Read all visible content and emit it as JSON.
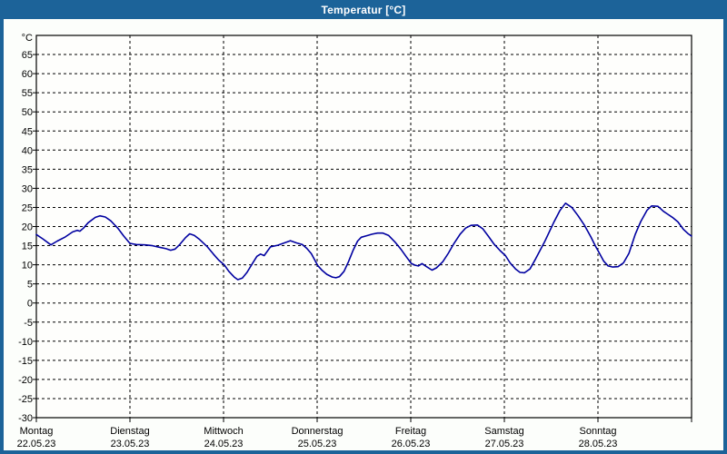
{
  "window": {
    "title": "Temperatur [°C]"
  },
  "colors": {
    "titlebar": "#1c6399",
    "border": "#1c6399",
    "curve": "#0000a0",
    "grid": "#000000",
    "frame": "#000000",
    "plot_background": "#fefefc",
    "page_background": "#fcfefb",
    "title_text": "#ffffff",
    "label_text": "#000000"
  },
  "chart_data": {
    "type": "line",
    "title": "Temperatur [°C]",
    "ylabel": "°C",
    "ylim": [
      -30,
      70
    ],
    "y_ticks": [
      65,
      60,
      55,
      50,
      45,
      40,
      35,
      30,
      25,
      20,
      15,
      10,
      5,
      0,
      -5,
      -10,
      -15,
      -20,
      -25,
      -30
    ],
    "x_range_days": [
      0,
      7
    ],
    "grid": "dashed",
    "legend": "none",
    "days": [
      {
        "name": "Montag",
        "date": "22.05.23"
      },
      {
        "name": "Dienstag",
        "date": "23.05.23"
      },
      {
        "name": "Mittwoch",
        "date": "24.05.23"
      },
      {
        "name": "Donnerstag",
        "date": "25.05.23"
      },
      {
        "name": "Freitag",
        "date": "26.05.23"
      },
      {
        "name": "Samstag",
        "date": "27.05.23"
      },
      {
        "name": "Sonntag",
        "date": "28.05.23"
      }
    ],
    "series": [
      {
        "name": "Temperatur",
        "unit": "°C",
        "color": "#0000a0",
        "points": [
          [
            0.0,
            17.9
          ],
          [
            0.068,
            16.8
          ],
          [
            0.155,
            15.2
          ],
          [
            0.223,
            16.2
          ],
          [
            0.31,
            17.3
          ],
          [
            0.388,
            18.6
          ],
          [
            0.436,
            19.0
          ],
          [
            0.465,
            18.8
          ],
          [
            0.504,
            19.6
          ],
          [
            0.553,
            21.0
          ],
          [
            0.63,
            22.4
          ],
          [
            0.679,
            22.8
          ],
          [
            0.737,
            22.5
          ],
          [
            0.795,
            21.5
          ],
          [
            0.873,
            19.5
          ],
          [
            0.931,
            17.6
          ],
          [
            0.999,
            15.6
          ],
          [
            1.067,
            15.3
          ],
          [
            1.163,
            15.2
          ],
          [
            1.241,
            15.0
          ],
          [
            1.309,
            14.6
          ],
          [
            1.386,
            14.2
          ],
          [
            1.435,
            13.8
          ],
          [
            1.483,
            14.1
          ],
          [
            1.532,
            15.3
          ],
          [
            1.59,
            17.0
          ],
          [
            1.638,
            18.1
          ],
          [
            1.687,
            17.7
          ],
          [
            1.745,
            16.6
          ],
          [
            1.823,
            14.8
          ],
          [
            1.891,
            12.8
          ],
          [
            1.949,
            11.2
          ],
          [
            2.007,
            10.0
          ],
          [
            2.056,
            8.3
          ],
          [
            2.114,
            6.8
          ],
          [
            2.152,
            6.1
          ],
          [
            2.201,
            6.5
          ],
          [
            2.25,
            8.0
          ],
          [
            2.308,
            10.3
          ],
          [
            2.356,
            12.2
          ],
          [
            2.395,
            12.8
          ],
          [
            2.434,
            12.4
          ],
          [
            2.502,
            14.7
          ],
          [
            2.579,
            15.1
          ],
          [
            2.647,
            15.7
          ],
          [
            2.715,
            16.3
          ],
          [
            2.783,
            15.7
          ],
          [
            2.841,
            15.3
          ],
          [
            2.889,
            14.3
          ],
          [
            2.938,
            12.9
          ],
          [
            3.006,
            9.8
          ],
          [
            3.054,
            8.5
          ],
          [
            3.103,
            7.5
          ],
          [
            3.161,
            6.8
          ],
          [
            3.2,
            6.6
          ],
          [
            3.238,
            6.9
          ],
          [
            3.287,
            8.3
          ],
          [
            3.335,
            10.8
          ],
          [
            3.384,
            13.8
          ],
          [
            3.432,
            16.2
          ],
          [
            3.471,
            17.2
          ],
          [
            3.529,
            17.6
          ],
          [
            3.587,
            18.0
          ],
          [
            3.645,
            18.3
          ],
          [
            3.703,
            18.3
          ],
          [
            3.762,
            17.7
          ],
          [
            3.829,
            16.0
          ],
          [
            3.897,
            14.0
          ],
          [
            3.955,
            12.0
          ],
          [
            4.004,
            10.4
          ],
          [
            4.043,
            9.9
          ],
          [
            4.081,
            9.7
          ],
          [
            4.12,
            10.3
          ],
          [
            4.169,
            9.5
          ],
          [
            4.227,
            8.6
          ],
          [
            4.275,
            9.2
          ],
          [
            4.343,
            10.8
          ],
          [
            4.401,
            13.0
          ],
          [
            4.46,
            15.5
          ],
          [
            4.527,
            18.0
          ],
          [
            4.586,
            19.6
          ],
          [
            4.644,
            20.3
          ],
          [
            4.712,
            20.4
          ],
          [
            4.77,
            19.4
          ],
          [
            4.828,
            17.5
          ],
          [
            4.886,
            15.5
          ],
          [
            4.954,
            13.7
          ],
          [
            5.012,
            12.4
          ],
          [
            5.061,
            10.5
          ],
          [
            5.119,
            8.9
          ],
          [
            5.167,
            8.0
          ],
          [
            5.216,
            7.9
          ],
          [
            5.274,
            8.9
          ],
          [
            5.333,
            11.5
          ],
          [
            5.43,
            16.0
          ],
          [
            5.526,
            21.0
          ],
          [
            5.594,
            24.2
          ],
          [
            5.653,
            26.1
          ],
          [
            5.72,
            25.0
          ],
          [
            5.788,
            22.8
          ],
          [
            5.856,
            20.3
          ],
          [
            5.924,
            17.3
          ],
          [
            5.973,
            14.9
          ],
          [
            6.012,
            13.2
          ],
          [
            6.06,
            11.0
          ],
          [
            6.109,
            9.7
          ],
          [
            6.157,
            9.4
          ],
          [
            6.215,
            9.5
          ],
          [
            6.273,
            10.5
          ],
          [
            6.331,
            13.0
          ],
          [
            6.399,
            18.0
          ],
          [
            6.457,
            21.3
          ],
          [
            6.525,
            24.3
          ],
          [
            6.573,
            25.4
          ],
          [
            6.641,
            25.3
          ],
          [
            6.699,
            24.0
          ],
          [
            6.747,
            23.2
          ],
          [
            6.796,
            22.4
          ],
          [
            6.854,
            21.2
          ],
          [
            6.912,
            19.3
          ],
          [
            6.96,
            18.2
          ],
          [
            6.999,
            17.5
          ]
        ]
      }
    ]
  }
}
